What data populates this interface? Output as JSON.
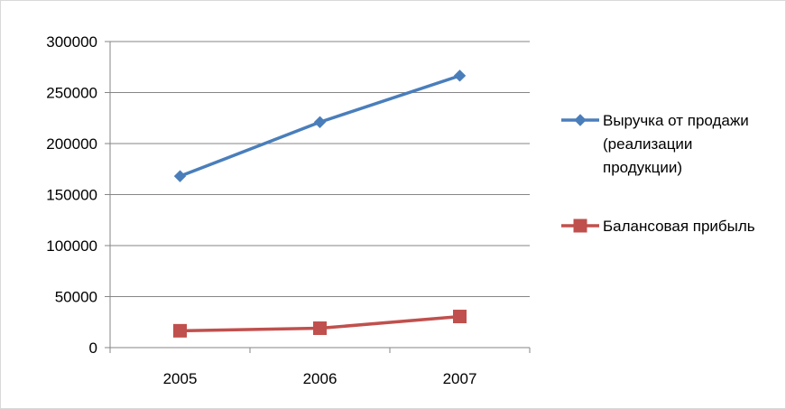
{
  "chart_data": {
    "type": "line",
    "categories": [
      "2005",
      "2006",
      "2007"
    ],
    "series": [
      {
        "name": "Выручка от продажи (реализации продукции)",
        "name_lines": [
          "Выручка от продажи",
          "(реализации",
          "продукции)"
        ],
        "values": [
          168000,
          221000,
          266500
        ],
        "color": "#4a7ebb",
        "marker": "diamond"
      },
      {
        "name": "Балансовая прибыль",
        "name_lines": [
          "Балансовая прибыль"
        ],
        "values": [
          16500,
          19000,
          30500
        ],
        "color": "#c0504d",
        "marker": "square"
      }
    ],
    "ylim": [
      0,
      300000
    ],
    "yticks": [
      "0",
      "50000",
      "100000",
      "150000",
      "200000",
      "250000",
      "300000"
    ],
    "grid": true,
    "legend": "right"
  }
}
